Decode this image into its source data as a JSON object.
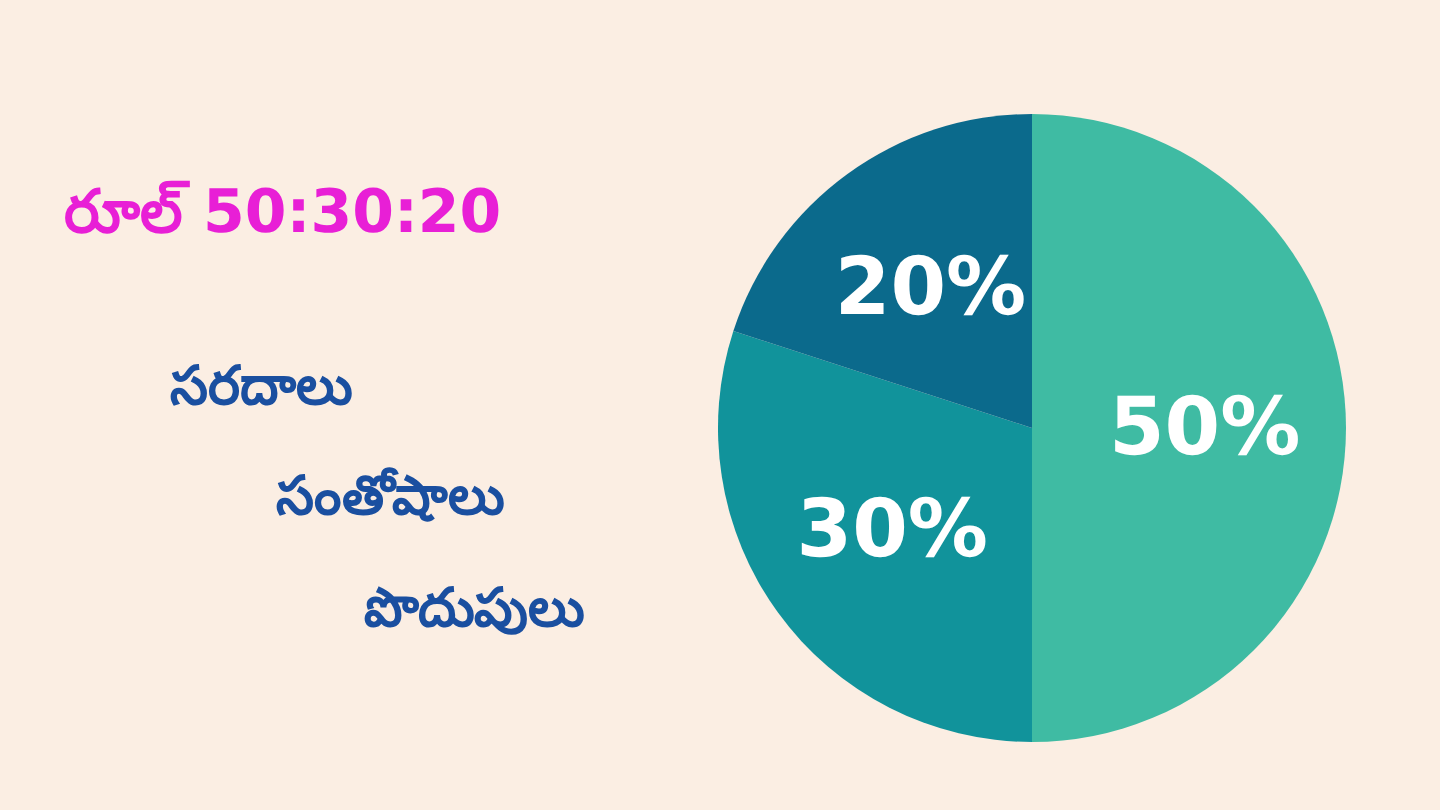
{
  "chart_data": {
    "type": "pie",
    "title": "రూల్ 50:30:20",
    "annotations": [
      "సరదాలు",
      "సంతోషాలు",
      "పొదుపులు"
    ],
    "categories": [
      null,
      null,
      null
    ],
    "values": [
      50,
      30,
      20
    ],
    "colors": [
      "#3fbba3",
      "#11939b",
      "#0b6a8c"
    ],
    "value_labels": [
      "50%",
      "30%",
      "20%"
    ]
  }
}
